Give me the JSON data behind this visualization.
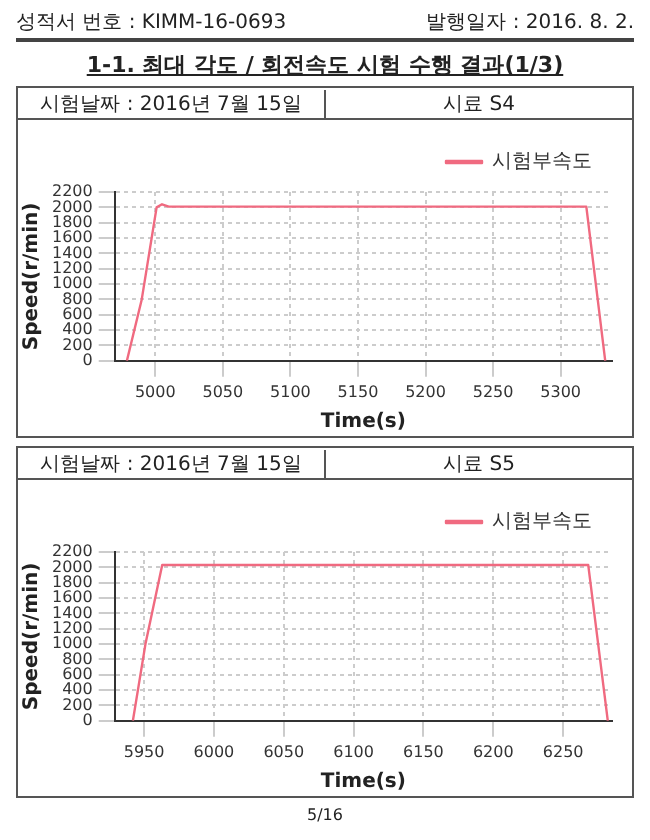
{
  "chart_data": [
    {
      "type": "line",
      "title": "1-1. 최대 각도 / 회전속도 시험 수행 결과(1/3)",
      "annotations": [
        "성적서 번호 : KIMM-16-0693",
        "발행일자 : 2016. 8. 2.",
        "시험날짜 : 2016년 7월 15일",
        "시료 S4"
      ],
      "xlabel": "Time(s)",
      "ylabel": "Speed(r/min)",
      "xlim": [
        4970,
        5338
      ],
      "xticks": [
        5000,
        5050,
        5100,
        5150,
        5200,
        5250,
        5300
      ],
      "ylim": [
        0,
        2200
      ],
      "yticks": [
        0,
        200,
        400,
        600,
        800,
        1000,
        1200,
        1400,
        1600,
        1800,
        2000,
        2200
      ],
      "grid": true,
      "legend": "top right",
      "marker": "none",
      "line_style": "solid",
      "series": [
        {
          "name": "시험부속도",
          "color": "#f06a80",
          "x": [
            4979,
            4990,
            5001,
            5005,
            5010,
            5319,
            5333
          ],
          "values": [
            0,
            800,
            2000,
            2040,
            2010,
            2010,
            0
          ]
        }
      ]
    },
    {
      "type": "line",
      "annotations": [
        "시험날짜 : 2016년 7월 15일",
        "시료 S5",
        "5/16"
      ],
      "xlabel": "Time(s)",
      "ylabel": "Speed(r/min)",
      "xlim": [
        5929,
        6285
      ],
      "xticks": [
        5950,
        6000,
        6050,
        6100,
        6150,
        6200,
        6250
      ],
      "ylim": [
        0,
        2200
      ],
      "yticks": [
        0,
        200,
        400,
        600,
        800,
        1000,
        1200,
        1400,
        1600,
        1800,
        2000,
        2200
      ],
      "grid": true,
      "legend": "top right",
      "marker": "none",
      "line_style": "solid",
      "series": [
        {
          "name": "시험부속도",
          "color": "#f06a80",
          "x": [
            5942,
            5951,
            5963,
            6268,
            6282
          ],
          "values": [
            0,
            1000,
            2030,
            2030,
            0
          ]
        }
      ]
    }
  ]
}
